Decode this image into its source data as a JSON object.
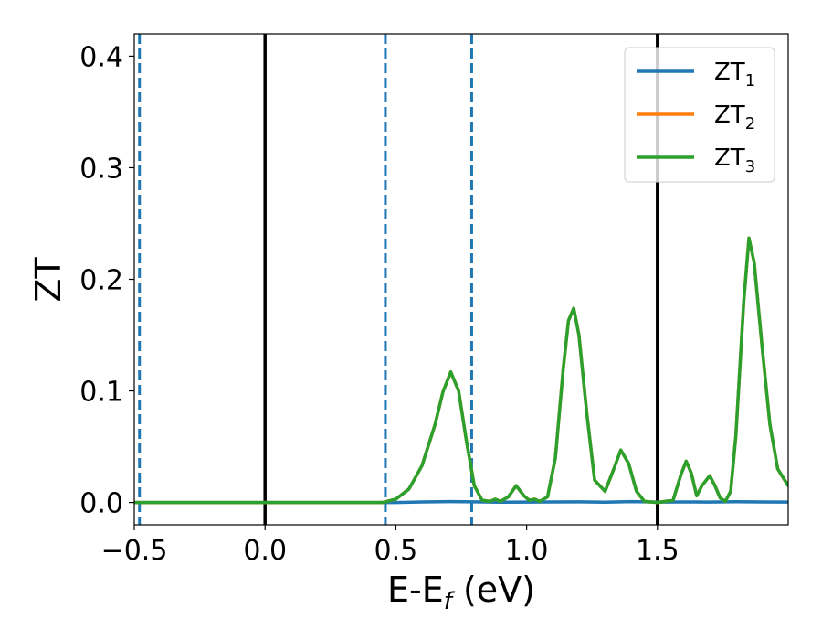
{
  "chart_data": {
    "type": "line",
    "xlabel_main": "E-E",
    "xlabel_sub": "f",
    "xlabel_unit": " (eV)",
    "ylabel": "ZT",
    "xlim": [
      -0.5,
      2.0
    ],
    "ylim": [
      -0.02,
      0.42
    ],
    "x_ticks": [
      {
        "value": -0.5,
        "label": "−0.5"
      },
      {
        "value": 0.0,
        "label": "0.0"
      },
      {
        "value": 0.5,
        "label": "0.5"
      },
      {
        "value": 1.0,
        "label": "1.0"
      },
      {
        "value": 1.5,
        "label": "1.5"
      }
    ],
    "y_ticks": [
      {
        "value": 0.0,
        "label": "0.0"
      },
      {
        "value": 0.1,
        "label": "0.1"
      },
      {
        "value": 0.2,
        "label": "0.2"
      },
      {
        "value": 0.3,
        "label": "0.3"
      },
      {
        "value": 0.4,
        "label": "0.4"
      }
    ],
    "grid": false,
    "legend_position": "top-right",
    "vertical_lines": [
      {
        "x": -0.48,
        "style": "dashed",
        "color": "#1f77b4"
      },
      {
        "x": 0.0,
        "style": "solid",
        "color": "#000000"
      },
      {
        "x": 0.46,
        "style": "dashed",
        "color": "#1f77b4"
      },
      {
        "x": 0.79,
        "style": "dashed",
        "color": "#1f77b4"
      },
      {
        "x": 1.5,
        "style": "solid",
        "color": "#000000"
      }
    ],
    "series": [
      {
        "name": "ZT",
        "sub": "1",
        "color": "#1f77b4",
        "x": [
          -0.5,
          0.5,
          0.6,
          0.7,
          0.8,
          0.9,
          1.0,
          1.1,
          1.2,
          1.3,
          1.4,
          1.5,
          1.6,
          1.7,
          1.8,
          1.9,
          2.0
        ],
        "y": [
          0.0,
          0.0,
          0.0005,
          0.0008,
          0.0006,
          0.0003,
          0.0004,
          0.0005,
          0.0006,
          0.0003,
          0.0008,
          0.0004,
          0.0005,
          0.0004,
          0.0007,
          0.0005,
          0.0004
        ]
      },
      {
        "name": "ZT",
        "sub": "2",
        "color": "#ff7f0e",
        "x": [
          -0.5,
          0.45,
          0.5,
          0.55,
          0.6,
          0.65,
          0.68,
          0.71,
          0.74,
          0.77,
          0.8,
          0.83,
          0.86,
          0.88,
          0.9,
          0.93,
          0.96,
          0.99,
          1.01,
          1.03,
          1.05,
          1.08,
          1.11,
          1.14,
          1.16,
          1.18,
          1.2,
          1.23,
          1.26,
          1.3,
          1.33,
          1.36,
          1.39,
          1.42,
          1.45,
          1.5,
          1.56,
          1.59,
          1.61,
          1.63,
          1.65,
          1.67,
          1.7,
          1.72,
          1.74,
          1.76,
          1.78,
          1.8,
          1.83,
          1.85,
          1.87,
          1.9,
          1.93,
          1.96,
          2.0
        ],
        "y": [
          0.0,
          0.0,
          0.003,
          0.012,
          0.033,
          0.07,
          0.099,
          0.117,
          0.1,
          0.055,
          0.015,
          0.002,
          0.001,
          0.003,
          0.001,
          0.005,
          0.015,
          0.006,
          0.002,
          0.003,
          0.001,
          0.005,
          0.04,
          0.12,
          0.163,
          0.174,
          0.15,
          0.08,
          0.02,
          0.01,
          0.028,
          0.047,
          0.035,
          0.01,
          0.001,
          0.0,
          0.002,
          0.025,
          0.037,
          0.026,
          0.006,
          0.015,
          0.024,
          0.015,
          0.004,
          0.001,
          0.01,
          0.06,
          0.18,
          0.237,
          0.215,
          0.14,
          0.07,
          0.03,
          0.015
        ]
      },
      {
        "name": "ZT",
        "sub": "3",
        "color": "#2ca02c",
        "x": [
          -0.5,
          0.45,
          0.5,
          0.55,
          0.6,
          0.65,
          0.68,
          0.71,
          0.74,
          0.77,
          0.8,
          0.83,
          0.86,
          0.88,
          0.9,
          0.93,
          0.96,
          0.99,
          1.01,
          1.03,
          1.05,
          1.08,
          1.11,
          1.14,
          1.16,
          1.18,
          1.2,
          1.23,
          1.26,
          1.3,
          1.33,
          1.36,
          1.39,
          1.42,
          1.45,
          1.5,
          1.56,
          1.59,
          1.61,
          1.63,
          1.65,
          1.67,
          1.7,
          1.72,
          1.74,
          1.76,
          1.78,
          1.8,
          1.83,
          1.85,
          1.87,
          1.9,
          1.93,
          1.96,
          2.0
        ],
        "y": [
          0.0,
          0.0,
          0.003,
          0.012,
          0.033,
          0.07,
          0.099,
          0.117,
          0.1,
          0.055,
          0.015,
          0.002,
          0.001,
          0.003,
          0.001,
          0.005,
          0.015,
          0.006,
          0.002,
          0.003,
          0.001,
          0.005,
          0.04,
          0.12,
          0.163,
          0.174,
          0.15,
          0.08,
          0.02,
          0.01,
          0.028,
          0.047,
          0.035,
          0.01,
          0.001,
          0.0,
          0.002,
          0.025,
          0.037,
          0.026,
          0.006,
          0.015,
          0.024,
          0.015,
          0.004,
          0.001,
          0.01,
          0.06,
          0.18,
          0.237,
          0.215,
          0.14,
          0.07,
          0.03,
          0.015
        ]
      }
    ]
  }
}
